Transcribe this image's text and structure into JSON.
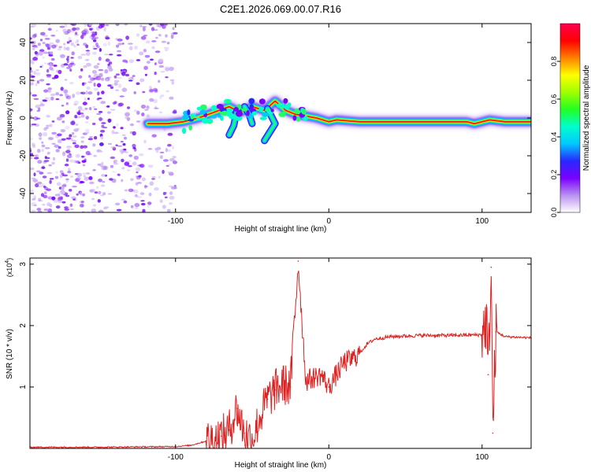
{
  "title": "C2E1.2026.069.00.07.R16",
  "chart_data": [
    {
      "type": "heatmap",
      "xlabel": "Height of straight line (km)",
      "ylabel": "Frequency (Hz)",
      "xlim": [
        -195,
        132
      ],
      "ylim": [
        -50,
        50
      ],
      "xticks": [
        -100,
        0,
        100
      ],
      "yticks": [
        -40,
        -20,
        0,
        20,
        40
      ],
      "ridge": [
        {
          "x": -118,
          "y": -3
        },
        {
          "x": -105,
          "y": -3
        },
        {
          "x": -95,
          "y": -2
        },
        {
          "x": -85,
          "y": 0
        },
        {
          "x": -75,
          "y": 3
        },
        {
          "x": -65,
          "y": 6
        },
        {
          "x": -58,
          "y": 3
        },
        {
          "x": -50,
          "y": 6
        },
        {
          "x": -42,
          "y": 4
        },
        {
          "x": -35,
          "y": 9
        },
        {
          "x": -28,
          "y": 4
        },
        {
          "x": -22,
          "y": 2
        },
        {
          "x": -15,
          "y": 1
        },
        {
          "x": -8,
          "y": 0
        },
        {
          "x": 0,
          "y": -2
        },
        {
          "x": 5,
          "y": -1
        },
        {
          "x": 20,
          "y": -2
        },
        {
          "x": 60,
          "y": -2
        },
        {
          "x": 90,
          "y": -2
        },
        {
          "x": 95,
          "y": -3
        },
        {
          "x": 100,
          "y": -2
        },
        {
          "x": 105,
          "y": -1
        },
        {
          "x": 115,
          "y": -2
        },
        {
          "x": 132,
          "y": -2
        }
      ],
      "branches": [
        {
          "points": [
            {
              "x": -60,
              "y": 4
            },
            {
              "x": -62,
              "y": -4
            },
            {
              "x": -65,
              "y": -9
            }
          ]
        },
        {
          "points": [
            {
              "x": -40,
              "y": 5
            },
            {
              "x": -35,
              "y": -3
            },
            {
              "x": -42,
              "y": -12
            }
          ]
        },
        {
          "points": [
            {
              "x": -55,
              "y": 6
            },
            {
              "x": -52,
              "y": 2
            },
            {
              "x": -50,
              "y": -3
            }
          ]
        }
      ],
      "noise_region": {
        "x_from": -195,
        "x_to": -100
      },
      "colorbar": {
        "label": "Normalized spectral amplitude",
        "ticks": [
          "0.0",
          "0.2",
          "0.4",
          "0.6",
          "0.8"
        ],
        "range": [
          0,
          1
        ],
        "colors": [
          "#ffffff",
          "#b990f0",
          "#7a00ff",
          "#2828ff",
          "#00c8ff",
          "#00ffcc",
          "#22ff22",
          "#a0ff00",
          "#ffff00",
          "#ff8000",
          "#ff0000",
          "#ff0050"
        ]
      }
    },
    {
      "type": "line",
      "xlabel": "Height of straight line (km)",
      "ylabel": "SNR (10 * v/v)",
      "multiplier_label": "(x10",
      "multiplier_exp": "4",
      "xlim": [
        -195,
        132
      ],
      "ylim": [
        0,
        3.1
      ],
      "xticks": [
        -100,
        0,
        100
      ],
      "yticks": [
        1,
        2,
        3
      ],
      "series": [
        {
          "name": "SNR",
          "color": "#e02020",
          "points": [
            {
              "x": -195,
              "y": 0.02
            },
            {
              "x": -150,
              "y": 0.02
            },
            {
              "x": -100,
              "y": 0.03
            },
            {
              "x": -90,
              "y": 0.05
            },
            {
              "x": -80,
              "y": 0.12
            },
            {
              "x": -70,
              "y": 0.2
            },
            {
              "x": -65,
              "y": 0.3
            },
            {
              "x": -60,
              "y": 0.65
            },
            {
              "x": -55,
              "y": 0.25
            },
            {
              "x": -50,
              "y": 0.15
            },
            {
              "x": -45,
              "y": 0.5
            },
            {
              "x": -40,
              "y": 0.8
            },
            {
              "x": -35,
              "y": 0.95
            },
            {
              "x": -30,
              "y": 1.05
            },
            {
              "x": -25,
              "y": 1.0
            },
            {
              "x": -20,
              "y": 3.05
            },
            {
              "x": -15,
              "y": 1.1
            },
            {
              "x": -10,
              "y": 1.15
            },
            {
              "x": -5,
              "y": 1.2
            },
            {
              "x": 0,
              "y": 1.0
            },
            {
              "x": 5,
              "y": 1.2
            },
            {
              "x": 10,
              "y": 1.4
            },
            {
              "x": 15,
              "y": 1.45
            },
            {
              "x": 20,
              "y": 1.55
            },
            {
              "x": 25,
              "y": 1.7
            },
            {
              "x": 30,
              "y": 1.78
            },
            {
              "x": 40,
              "y": 1.82
            },
            {
              "x": 60,
              "y": 1.84
            },
            {
              "x": 80,
              "y": 1.84
            },
            {
              "x": 100,
              "y": 1.85
            },
            {
              "x": 103,
              "y": 2.1
            },
            {
              "x": 104,
              "y": 1.2
            },
            {
              "x": 106,
              "y": 2.95
            },
            {
              "x": 107,
              "y": 0.25
            },
            {
              "x": 109,
              "y": 1.9
            },
            {
              "x": 115,
              "y": 1.82
            },
            {
              "x": 132,
              "y": 1.8
            }
          ]
        }
      ]
    }
  ]
}
